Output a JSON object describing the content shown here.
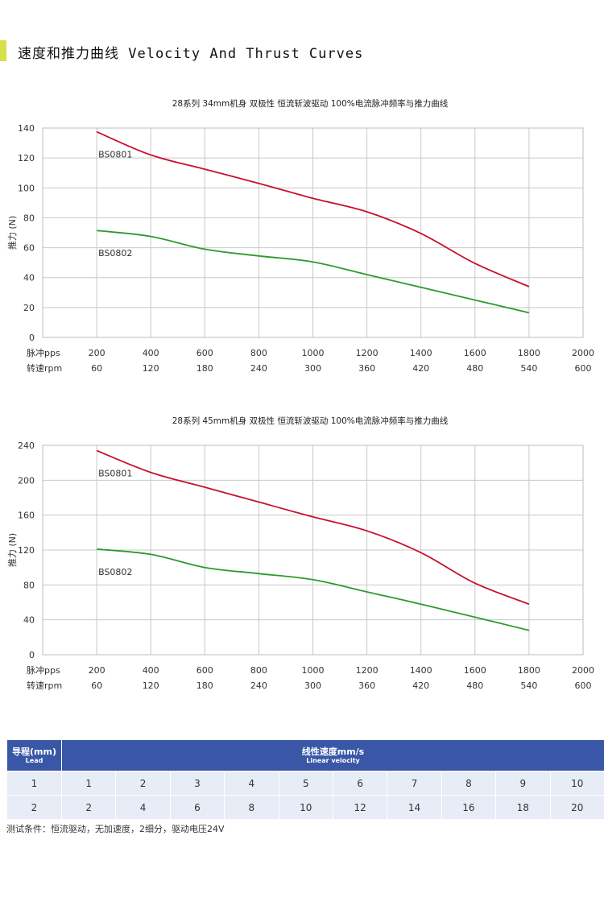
{
  "header": {
    "title": "速度和推力曲线 Velocity And Thrust Curves",
    "accent_color": "#d6e04a"
  },
  "chart_data": [
    {
      "type": "line",
      "title": "28系列 34mm机身 双极性 恒流斩波驱动 100%电流脉冲频率与推力曲线",
      "ylabel": "推力 (N)",
      "xlabel_pps": "脉冲pps",
      "xlabel_rpm": "转速rpm",
      "x": [
        200,
        400,
        600,
        800,
        1000,
        1200,
        1400,
        1600,
        1800
      ],
      "x_ticks": [
        200,
        400,
        600,
        800,
        1000,
        1200,
        1400,
        1600,
        1800,
        2000
      ],
      "rpm_ticks": [
        60,
        120,
        180,
        240,
        300,
        360,
        420,
        480,
        540,
        600
      ],
      "y_ticks": [
        0,
        20,
        40,
        60,
        80,
        100,
        120,
        140
      ],
      "xlim": [
        0,
        2000
      ],
      "ylim": [
        0,
        140
      ],
      "grid": true,
      "series": [
        {
          "name": "BS0801",
          "color": "#c8102e",
          "values": [
            137.5,
            122,
            112.5,
            103,
            93,
            84,
            69.5,
            49.5,
            34
          ]
        },
        {
          "name": "BS0802",
          "color": "#2e9a2e",
          "values": [
            71.5,
            67.5,
            59,
            54.5,
            50.5,
            42,
            33.5,
            25,
            16.5
          ]
        }
      ]
    },
    {
      "type": "line",
      "title": "28系列 45mm机身 双极性 恒流斩波驱动 100%电流脉冲频率与推力曲线",
      "ylabel": "推力 (N)",
      "xlabel_pps": "脉冲pps",
      "xlabel_rpm": "转速rpm",
      "x": [
        200,
        400,
        600,
        800,
        1000,
        1200,
        1400,
        1600,
        1800
      ],
      "x_ticks": [
        200,
        400,
        600,
        800,
        1000,
        1200,
        1400,
        1600,
        1800,
        2000
      ],
      "rpm_ticks": [
        60,
        120,
        180,
        240,
        300,
        360,
        420,
        480,
        540,
        600
      ],
      "y_ticks": [
        0,
        40,
        80,
        120,
        160,
        200,
        240
      ],
      "xlim": [
        0,
        2000
      ],
      "ylim": [
        0,
        240
      ],
      "grid": true,
      "series": [
        {
          "name": "BS0801",
          "color": "#c8102e",
          "values": [
            234,
            209,
            192,
            175,
            158,
            142,
            117,
            82,
            58
          ]
        },
        {
          "name": "BS0802",
          "color": "#2e9a2e",
          "values": [
            121,
            115,
            100,
            93,
            86,
            72,
            58,
            43,
            28
          ]
        }
      ]
    }
  ],
  "speed_table": {
    "header_color": "#3a57a7",
    "row_color": "#e8ecf6",
    "col1_main": "导程(mm)",
    "col1_sub": "Lead",
    "col2_main": "线性速度mm/s",
    "col2_sub": "Linear velocity",
    "rows": [
      [
        "1",
        "1",
        "2",
        "3",
        "4",
        "5",
        "6",
        "7",
        "8",
        "9",
        "10"
      ],
      [
        "2",
        "2",
        "4",
        "6",
        "8",
        "10",
        "12",
        "14",
        "16",
        "18",
        "20"
      ]
    ]
  },
  "note": "测试条件：恒流驱动，无加速度，2细分，驱动电压24V"
}
